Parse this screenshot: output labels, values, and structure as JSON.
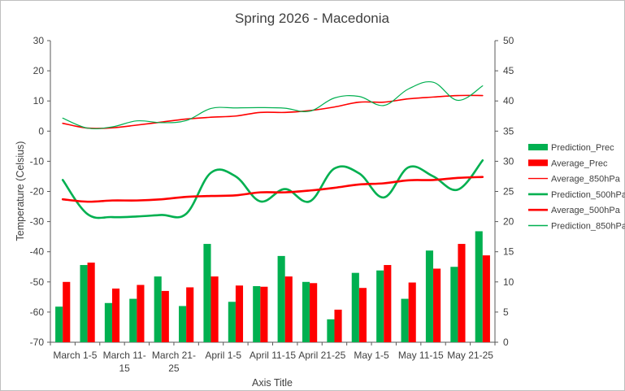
{
  "chart_data": {
    "type": "combo-bar-line",
    "title": "Spring 2026 - Macedonia",
    "xlabel": "Axis Title",
    "ylabel": "Temperature (Celsius)",
    "y_left": {
      "min": -70,
      "max": 30,
      "step": 10
    },
    "y_right": {
      "min": 0,
      "max": 50,
      "step": 5
    },
    "grid": false,
    "legend_position": "right",
    "period_count": 18,
    "category_labels": [
      {
        "index": 0,
        "lines": [
          "March 1-5"
        ]
      },
      {
        "index": 2,
        "lines": [
          "March 11-",
          "15"
        ]
      },
      {
        "index": 4,
        "lines": [
          "March 21-",
          "25"
        ]
      },
      {
        "index": 6,
        "lines": [
          "April 1-5"
        ]
      },
      {
        "index": 8,
        "lines": [
          "April 11-15"
        ]
      },
      {
        "index": 10,
        "lines": [
          "April 21-25"
        ]
      },
      {
        "index": 12,
        "lines": [
          "May 1-5"
        ]
      },
      {
        "index": 14,
        "lines": [
          "May 11-15"
        ]
      },
      {
        "index": 16,
        "lines": [
          "May 21-25"
        ]
      }
    ],
    "bar_series": [
      {
        "name": "Prediction_Prec",
        "axis": "right",
        "color": "#00b050",
        "values": [
          5.9,
          12.8,
          6.5,
          7.2,
          10.9,
          6.0,
          16.3,
          6.7,
          9.3,
          14.3,
          10.0,
          3.8,
          11.5,
          11.9,
          7.2,
          15.2,
          12.5,
          18.4
        ]
      },
      {
        "name": "Average_Prec",
        "axis": "right",
        "color": "#ff0000",
        "values": [
          10.0,
          13.2,
          8.9,
          9.5,
          8.5,
          9.1,
          10.9,
          9.4,
          9.2,
          10.9,
          9.8,
          5.4,
          9.0,
          12.8,
          9.9,
          12.2,
          16.3,
          14.4
        ]
      }
    ],
    "line_series": [
      {
        "name": "Average_850hPa",
        "axis": "left",
        "color": "#ff0000",
        "width": 1.6,
        "values": [
          2.6,
          1.0,
          1.1,
          2.0,
          3.0,
          4.0,
          4.6,
          5.0,
          6.2,
          6.2,
          6.8,
          8.0,
          9.6,
          9.6,
          10.7,
          11.3,
          11.8,
          11.8
        ]
      },
      {
        "name": "Prediction_850hPa",
        "axis": "left",
        "color": "#00b050",
        "width": 1.2,
        "values": [
          4.3,
          1.0,
          1.4,
          3.4,
          2.8,
          3.5,
          7.5,
          7.7,
          7.8,
          7.6,
          6.6,
          11.0,
          11.5,
          8.5,
          14.0,
          16.2,
          10.2,
          15.0
        ]
      },
      {
        "name": "Prediction_500hPa",
        "axis": "left",
        "color": "#00b050",
        "width": 2.6,
        "values": [
          -16.2,
          -27.5,
          -28.5,
          -28.3,
          -27.8,
          -27.4,
          -13.8,
          -15.0,
          -23.3,
          -19.2,
          -23.3,
          -12.4,
          -14.0,
          -22.0,
          -12.0,
          -15.0,
          -19.4,
          -9.7
        ]
      },
      {
        "name": "Average_500hPa",
        "axis": "left",
        "color": "#ff0000",
        "width": 2.6,
        "values": [
          -22.6,
          -23.4,
          -23.0,
          -23.0,
          -22.6,
          -21.8,
          -21.5,
          -21.3,
          -20.3,
          -20.3,
          -19.7,
          -18.8,
          -17.7,
          -17.3,
          -16.3,
          -16.2,
          -15.5,
          -15.2
        ]
      }
    ],
    "legend": [
      {
        "name": "Prediction_Prec",
        "kind": "bar",
        "color": "#00b050"
      },
      {
        "name": "Average_Prec",
        "kind": "bar",
        "color": "#ff0000"
      },
      {
        "name": "Average_850hPa",
        "kind": "line-thin",
        "color": "#ff0000"
      },
      {
        "name": "Prediction_500hPa",
        "kind": "line-thick",
        "color": "#00b050"
      },
      {
        "name": "Average_500hPa",
        "kind": "line-thick",
        "color": "#ff0000"
      },
      {
        "name": "Prediction_850hPa",
        "kind": "line-thin",
        "color": "#00b050"
      }
    ]
  }
}
